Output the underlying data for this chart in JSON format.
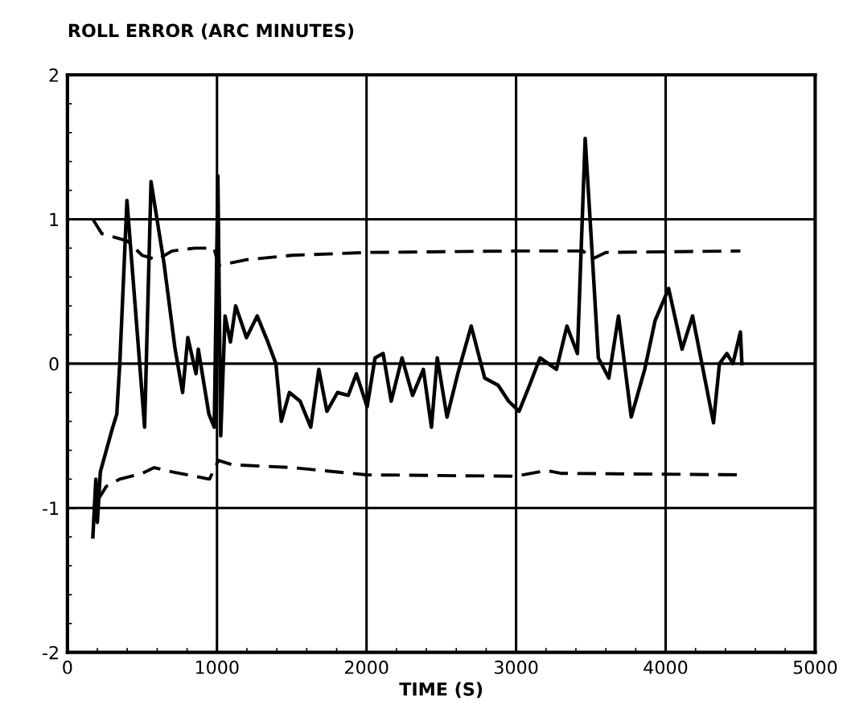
{
  "chart_data": {
    "type": "line",
    "title": "ROLL ERROR (ARC MINUTES)",
    "xlabel": "TIME (S)",
    "xlim": [
      0,
      5000
    ],
    "xticks": [
      0,
      1000,
      2000,
      3000,
      4000,
      5000
    ],
    "ylim": [
      -2,
      2
    ],
    "yticks": [
      -2,
      -1,
      0,
      1,
      2
    ],
    "grid": true,
    "series": [
      {
        "color": "#000000",
        "line_style": "solid",
        "x": [
          170,
          190,
          200,
          220,
          260,
          300,
          330,
          350,
          398,
          516,
          559,
          645,
          720,
          770,
          805,
          860,
          875,
          946,
          982,
          1006,
          1025,
          1054,
          1090,
          1125,
          1197,
          1269,
          1340,
          1394,
          1430,
          1484,
          1556,
          1627,
          1681,
          1735,
          1806,
          1878,
          1932,
          2004,
          2057,
          2111,
          2165,
          2237,
          2308,
          2380,
          2434,
          2473,
          2538,
          2610,
          2700,
          2790,
          2880,
          2950,
          3020,
          3090,
          3160,
          3270,
          3340,
          3410,
          3462,
          3510,
          3550,
          3620,
          3685,
          3770,
          3860,
          3930,
          4020,
          4110,
          4180,
          4250,
          4320,
          4360,
          4410,
          4450,
          4500,
          4510
        ],
        "values": [
          -1.2,
          -0.8,
          -1.1,
          -0.75,
          -0.6,
          -0.45,
          -0.35,
          0.0,
          1.13,
          -0.44,
          1.26,
          0.7,
          0.1,
          -0.2,
          0.18,
          -0.07,
          0.1,
          -0.35,
          -0.44,
          1.3,
          -0.5,
          0.33,
          0.15,
          0.4,
          0.18,
          0.33,
          0.15,
          0.0,
          -0.4,
          -0.2,
          -0.26,
          -0.44,
          -0.04,
          -0.33,
          -0.2,
          -0.22,
          -0.07,
          -0.3,
          0.04,
          0.07,
          -0.26,
          0.04,
          -0.22,
          -0.04,
          -0.44,
          0.04,
          -0.37,
          -0.07,
          0.26,
          -0.1,
          -0.15,
          -0.26,
          -0.33,
          -0.15,
          0.04,
          -0.04,
          0.26,
          0.07,
          1.56,
          0.74,
          0.04,
          -0.1,
          0.33,
          -0.37,
          -0.04,
          0.3,
          0.52,
          0.1,
          0.33,
          -0.04,
          -0.41,
          0.0,
          0.07,
          0.0,
          0.22,
          0.0
        ]
      },
      {
        "color": "#000000",
        "line_style": "dashed",
        "x": [
          170,
          230,
          300,
          400,
          500,
          600,
          700,
          850,
          980,
          1010,
          1200,
          1500,
          2000,
          3000,
          3450,
          3500,
          3600,
          4500
        ],
        "values": [
          1.0,
          0.9,
          0.88,
          0.85,
          0.75,
          0.72,
          0.78,
          0.8,
          0.8,
          0.68,
          0.72,
          0.75,
          0.77,
          0.78,
          0.78,
          0.72,
          0.77,
          0.78
        ]
      },
      {
        "color": "#000000",
        "line_style": "dashed",
        "x": [
          200,
          260,
          350,
          500,
          580,
          700,
          850,
          950,
          1010,
          1100,
          1500,
          2000,
          3000,
          3200,
          3300,
          4500
        ],
        "values": [
          -0.95,
          -0.85,
          -0.8,
          -0.76,
          -0.72,
          -0.75,
          -0.78,
          -0.8,
          -0.67,
          -0.7,
          -0.72,
          -0.77,
          -0.78,
          -0.74,
          -0.76,
          -0.77
        ]
      }
    ]
  }
}
